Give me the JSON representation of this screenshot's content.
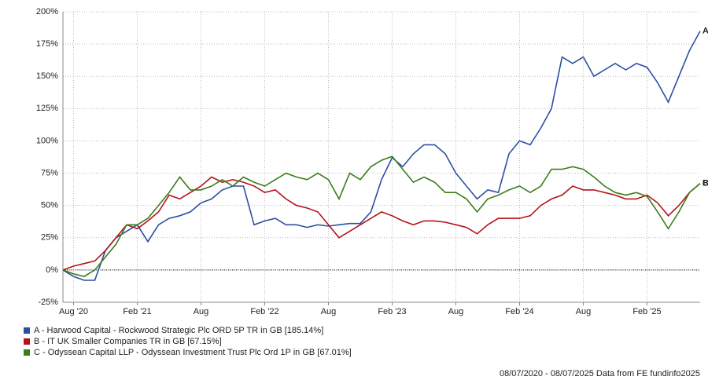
{
  "chart_data": {
    "type": "line",
    "x": [
      "2020-07",
      "2020-08",
      "2020-09",
      "2020-10",
      "2020-11",
      "2020-12",
      "2021-01",
      "2021-02",
      "2021-03",
      "2021-04",
      "2021-05",
      "2021-06",
      "2021-07",
      "2021-08",
      "2021-09",
      "2021-10",
      "2021-11",
      "2021-12",
      "2022-01",
      "2022-02",
      "2022-03",
      "2022-04",
      "2022-05",
      "2022-06",
      "2022-07",
      "2022-08",
      "2022-09",
      "2022-10",
      "2022-11",
      "2022-12",
      "2023-01",
      "2023-02",
      "2023-03",
      "2023-04",
      "2023-05",
      "2023-06",
      "2023-07",
      "2023-08",
      "2023-09",
      "2023-10",
      "2023-11",
      "2023-12",
      "2024-01",
      "2024-02",
      "2024-03",
      "2024-04",
      "2024-05",
      "2024-06",
      "2024-07",
      "2024-08",
      "2024-09",
      "2024-10",
      "2024-11",
      "2024-12",
      "2025-01",
      "2025-02",
      "2025-03",
      "2025-04",
      "2025-05",
      "2025-06",
      "2025-07"
    ],
    "series": [
      {
        "name": "A - Harwood Capital - Rockwood Strategic Plc ORD 5P TR in GB [185.14%]",
        "tag": "A",
        "color": "#2c4fa3",
        "values": [
          0,
          -5,
          -8,
          -8,
          15,
          25,
          30,
          35,
          22,
          35,
          40,
          42,
          45,
          52,
          55,
          62,
          65,
          65,
          35,
          38,
          40,
          35,
          35,
          33,
          35,
          34,
          35,
          36,
          36,
          45,
          70,
          87,
          80,
          90,
          97,
          97,
          90,
          75,
          65,
          55,
          62,
          60,
          90,
          100,
          97,
          110,
          125,
          165,
          160,
          165,
          150,
          155,
          160,
          155,
          160,
          157,
          145,
          130,
          150,
          170,
          185
        ]
      },
      {
        "name": "B - IT UK Smaller Companies TR in GB [67.15%]",
        "tag": "B",
        "color": "#b5121b",
        "values": [
          0,
          3,
          5,
          7,
          15,
          25,
          35,
          32,
          38,
          45,
          58,
          55,
          60,
          65,
          72,
          68,
          70,
          68,
          65,
          60,
          62,
          55,
          50,
          48,
          45,
          35,
          25,
          30,
          35,
          40,
          45,
          42,
          38,
          35,
          38,
          38,
          37,
          35,
          33,
          28,
          35,
          40,
          40,
          40,
          42,
          50,
          55,
          58,
          65,
          62,
          62,
          60,
          58,
          55,
          55,
          58,
          52,
          42,
          50,
          60,
          67
        ]
      },
      {
        "name": "C - Odyssean Capital LLP - Odyssean Investment Trust Plc Ord 1P in GB [67.01%]",
        "tag": "C",
        "color": "#3a7d1a",
        "values": [
          0,
          -3,
          -5,
          0,
          10,
          20,
          35,
          35,
          40,
          50,
          60,
          72,
          62,
          62,
          65,
          70,
          65,
          72,
          68,
          65,
          70,
          75,
          72,
          70,
          75,
          70,
          55,
          75,
          70,
          80,
          85,
          88,
          78,
          68,
          72,
          68,
          60,
          60,
          55,
          45,
          55,
          58,
          62,
          65,
          60,
          65,
          78,
          78,
          80,
          78,
          72,
          65,
          60,
          58,
          60,
          57,
          45,
          32,
          45,
          60,
          67
        ]
      }
    ],
    "xlim": [
      "2020-07",
      "2025-07"
    ],
    "xticks": [
      {
        "value": "2020-08",
        "label": "Aug '20"
      },
      {
        "value": "2021-02",
        "label": "Feb '21"
      },
      {
        "value": "2021-08",
        "label": "Aug"
      },
      {
        "value": "2022-02",
        "label": "Feb '22"
      },
      {
        "value": "2022-08",
        "label": "Aug"
      },
      {
        "value": "2023-02",
        "label": "Feb '23"
      },
      {
        "value": "2023-08",
        "label": "Aug"
      },
      {
        "value": "2024-02",
        "label": "Feb '24"
      },
      {
        "value": "2024-08",
        "label": "Aug"
      },
      {
        "value": "2025-02",
        "label": "Feb '25"
      }
    ],
    "ylim": [
      -25,
      200
    ],
    "yticks": [
      {
        "value": -25,
        "label": "-25%"
      },
      {
        "value": 0,
        "label": "0%"
      },
      {
        "value": 25,
        "label": "25%"
      },
      {
        "value": 50,
        "label": "50%"
      },
      {
        "value": 75,
        "label": "75%"
      },
      {
        "value": 100,
        "label": "100%"
      },
      {
        "value": 125,
        "label": "125%"
      },
      {
        "value": 150,
        "label": "150%"
      },
      {
        "value": 175,
        "label": "175%"
      },
      {
        "value": 200,
        "label": "200%"
      }
    ],
    "grid": true,
    "zero_line": true,
    "source": "08/07/2020 - 08/07/2025 Data from FE fundinfo2025"
  }
}
